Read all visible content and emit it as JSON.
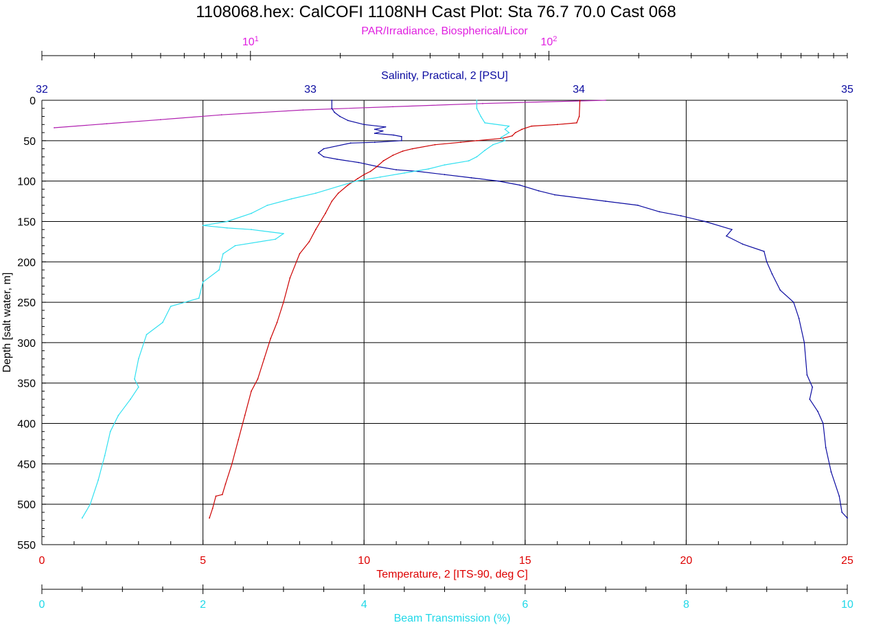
{
  "chart_data": {
    "type": "line",
    "title": "1108068.hex:  CalCOFI 1108NH Cast Plot: Sta 76.7 70.0 Cast 068",
    "grid": true,
    "y_axis": {
      "label": "Depth [salt water, m]",
      "range": [
        0,
        550
      ],
      "inverted": true,
      "ticks": [
        "0",
        "50",
        "100",
        "150",
        "200",
        "250",
        "300",
        "350",
        "400",
        "450",
        "500",
        "550"
      ],
      "color": "#000000"
    },
    "x_axes": [
      {
        "key": "par",
        "label": "PAR/Irradiance, Biospherical/Licor",
        "scale": "log",
        "range": [
          2,
          1000
        ],
        "ticks": [
          {
            "base": "10",
            "exp": "1"
          },
          {
            "base": "10",
            "exp": "2"
          }
        ],
        "color": "#e020e0"
      },
      {
        "key": "sal",
        "label": "Salinity, Practical, 2 [PSU]",
        "scale": "linear",
        "range": [
          32,
          35
        ],
        "ticks": [
          "32",
          "33",
          "34",
          "35"
        ],
        "color": "#0a0aa0"
      },
      {
        "key": "temp",
        "label": "Temperature, 2 [ITS-90, deg C]",
        "scale": "linear",
        "range": [
          0,
          25
        ],
        "ticks": [
          "0",
          "5",
          "10",
          "15",
          "20",
          "25"
        ],
        "color": "#dd0000"
      },
      {
        "key": "beam",
        "label": "Beam Transmission (%)",
        "scale": "linear",
        "range": [
          0,
          10
        ],
        "ticks": [
          "0",
          "2",
          "4",
          "6",
          "8",
          "10"
        ],
        "color": "#20d8e8"
      }
    ],
    "series": [
      {
        "axis": "par",
        "color": "#b020b0",
        "points": [
          [
            155,
            0
          ],
          [
            60,
            4
          ],
          [
            30,
            8
          ],
          [
            15,
            12
          ],
          [
            8,
            18
          ],
          [
            5,
            24
          ],
          [
            3.3,
            29
          ],
          [
            2.2,
            34
          ]
        ]
      },
      {
        "axis": "sal",
        "color": "#0a0aa0",
        "points": [
          [
            33.08,
            0
          ],
          [
            33.08,
            10
          ],
          [
            33.09,
            15
          ],
          [
            33.11,
            20
          ],
          [
            33.14,
            25
          ],
          [
            33.2,
            30
          ],
          [
            33.28,
            33
          ],
          [
            33.24,
            36
          ],
          [
            33.27,
            38
          ],
          [
            33.24,
            41
          ],
          [
            33.31,
            43
          ],
          [
            33.34,
            45
          ],
          [
            33.34,
            50
          ],
          [
            33.24,
            52
          ],
          [
            33.15,
            53
          ],
          [
            33.05,
            60
          ],
          [
            33.03,
            65
          ],
          [
            33.05,
            70
          ],
          [
            33.1,
            73
          ],
          [
            33.18,
            77
          ],
          [
            33.25,
            82
          ],
          [
            33.32,
            86
          ],
          [
            33.4,
            88
          ],
          [
            33.5,
            92
          ],
          [
            33.6,
            96
          ],
          [
            33.7,
            100
          ],
          [
            33.78,
            105
          ],
          [
            33.85,
            112
          ],
          [
            33.91,
            117
          ],
          [
            34.1,
            125
          ],
          [
            34.22,
            130
          ],
          [
            34.3,
            138
          ],
          [
            34.38,
            143
          ],
          [
            34.47,
            150
          ],
          [
            34.57,
            160
          ],
          [
            34.55,
            168
          ],
          [
            34.61,
            178
          ],
          [
            34.69,
            187
          ],
          [
            34.7,
            200
          ],
          [
            34.72,
            215
          ],
          [
            34.75,
            235
          ],
          [
            34.8,
            250
          ],
          [
            34.82,
            270
          ],
          [
            34.84,
            300
          ],
          [
            34.85,
            340
          ],
          [
            34.87,
            355
          ],
          [
            34.86,
            370
          ],
          [
            34.89,
            385
          ],
          [
            34.91,
            400
          ],
          [
            34.92,
            430
          ],
          [
            34.94,
            460
          ],
          [
            34.97,
            490
          ],
          [
            34.98,
            510
          ],
          [
            35.0,
            517
          ]
        ]
      },
      {
        "axis": "temp",
        "color": "#cc0000",
        "points": [
          [
            16.7,
            0
          ],
          [
            16.68,
            20
          ],
          [
            16.6,
            28
          ],
          [
            16.0,
            30
          ],
          [
            15.2,
            32
          ],
          [
            14.9,
            36
          ],
          [
            14.7,
            40
          ],
          [
            14.6,
            44
          ],
          [
            14.3,
            47
          ],
          [
            13.5,
            50
          ],
          [
            13.0,
            52
          ],
          [
            12.2,
            55
          ],
          [
            11.5,
            60
          ],
          [
            11.2,
            63
          ],
          [
            10.9,
            68
          ],
          [
            10.6,
            75
          ],
          [
            10.4,
            82
          ],
          [
            10.2,
            88
          ],
          [
            10.0,
            92
          ],
          [
            9.8,
            97
          ],
          [
            9.5,
            105
          ],
          [
            9.2,
            115
          ],
          [
            9.0,
            125
          ],
          [
            8.8,
            140
          ],
          [
            8.5,
            160
          ],
          [
            8.3,
            175
          ],
          [
            8.0,
            190
          ],
          [
            7.7,
            220
          ],
          [
            7.5,
            250
          ],
          [
            7.3,
            275
          ],
          [
            7.1,
            295
          ],
          [
            6.9,
            320
          ],
          [
            6.7,
            345
          ],
          [
            6.5,
            360
          ],
          [
            6.3,
            390
          ],
          [
            6.1,
            420
          ],
          [
            5.9,
            450
          ],
          [
            5.7,
            475
          ],
          [
            5.6,
            488
          ],
          [
            5.4,
            490
          ],
          [
            5.3,
            505
          ],
          [
            5.2,
            517
          ]
        ]
      },
      {
        "axis": "beam",
        "color": "#30e0f0",
        "points": [
          [
            5.4,
            0
          ],
          [
            5.4,
            10
          ],
          [
            5.45,
            20
          ],
          [
            5.5,
            28
          ],
          [
            5.8,
            32
          ],
          [
            5.75,
            36
          ],
          [
            5.8,
            40
          ],
          [
            5.7,
            46
          ],
          [
            5.75,
            50
          ],
          [
            5.6,
            55
          ],
          [
            5.5,
            62
          ],
          [
            5.4,
            70
          ],
          [
            5.3,
            75
          ],
          [
            5.0,
            80
          ],
          [
            4.8,
            85
          ],
          [
            4.5,
            90
          ],
          [
            4.2,
            95
          ],
          [
            3.9,
            100
          ],
          [
            3.4,
            115
          ],
          [
            3.1,
            122
          ],
          [
            2.8,
            130
          ],
          [
            2.6,
            140
          ],
          [
            2.3,
            150
          ],
          [
            2.0,
            155
          ],
          [
            2.3,
            158
          ],
          [
            2.6,
            160
          ],
          [
            3.0,
            165
          ],
          [
            2.9,
            172
          ],
          [
            2.4,
            180
          ],
          [
            2.25,
            190
          ],
          [
            2.2,
            210
          ],
          [
            2.0,
            225
          ],
          [
            1.95,
            245
          ],
          [
            1.6,
            255
          ],
          [
            1.5,
            275
          ],
          [
            1.3,
            290
          ],
          [
            1.2,
            320
          ],
          [
            1.15,
            345
          ],
          [
            1.2,
            355
          ],
          [
            1.1,
            370
          ],
          [
            0.95,
            390
          ],
          [
            0.85,
            410
          ],
          [
            0.78,
            440
          ],
          [
            0.7,
            470
          ],
          [
            0.6,
            500
          ],
          [
            0.5,
            517
          ]
        ]
      }
    ]
  }
}
